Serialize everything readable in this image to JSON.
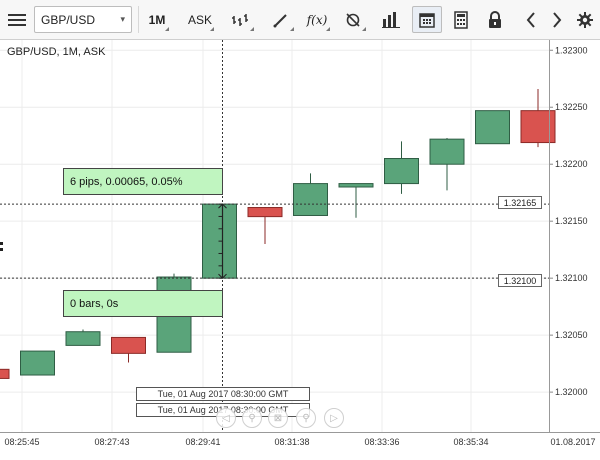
{
  "toolbar": {
    "symbol": "GBP/USD",
    "period": "1M",
    "side": "ASK",
    "icons": [
      "menu-icon",
      "bar-type-icon",
      "draw-line-icon",
      "function-icon",
      "crosshair-icon",
      "volume-bars-icon",
      "calendar-icon",
      "calculator-icon",
      "lock-icon",
      "arrow-left-icon",
      "arrow-right-icon",
      "gear-icon"
    ]
  },
  "chart": {
    "title": "GBP/USD, 1M, ASK",
    "measure_label": "6 pips, 0.00065, 0.05%",
    "bars_label": "0 bars, 0s",
    "time_tooltip_1": "Tue, 01 Aug 2017 08:30:00 GMT",
    "time_tooltip_2": "Tue, 01 Aug 2017 08:30:00 GMT",
    "price_tag_high": "1.32165",
    "price_tag_low": "1.32100",
    "colors": {
      "up": "#5aa47a",
      "down": "#d9534f",
      "label_bg": "#c0f5c0"
    }
  },
  "chart_data": {
    "type": "candlestick",
    "y_ticks": [
      "1.32300",
      "1.32250",
      "1.32200",
      "1.32150",
      "1.32100",
      "1.32050",
      "1.32000"
    ],
    "x_ticks": [
      "08:25:45",
      "08:27:43",
      "08:29:41",
      "08:31:38",
      "08:33:36",
      "08:35:34",
      "01.08.2017"
    ],
    "ylim": [
      1.31965,
      1.32309
    ],
    "candles": [
      {
        "open": 1.3202,
        "high": 1.3202,
        "low": 1.32012,
        "close": 1.32012
      },
      {
        "open": 1.32015,
        "high": 1.32036,
        "low": 1.32015,
        "close": 1.32036
      },
      {
        "open": 1.32041,
        "high": 1.32055,
        "low": 1.32041,
        "close": 1.32053
      },
      {
        "open": 1.32048,
        "high": 1.32048,
        "low": 1.32026,
        "close": 1.32034
      },
      {
        "open": 1.32035,
        "high": 1.32104,
        "low": 1.32035,
        "close": 1.32101
      },
      {
        "open": 1.321,
        "high": 1.32165,
        "low": 1.321,
        "close": 1.32165
      },
      {
        "open": 1.32162,
        "high": 1.32162,
        "low": 1.3213,
        "close": 1.32154
      },
      {
        "open": 1.32155,
        "high": 1.32192,
        "low": 1.32155,
        "close": 1.32183
      },
      {
        "open": 1.3218,
        "high": 1.32183,
        "low": 1.32153,
        "close": 1.32183
      },
      {
        "open": 1.32183,
        "high": 1.3222,
        "low": 1.32174,
        "close": 1.32205
      },
      {
        "open": 1.322,
        "high": 1.32223,
        "low": 1.32177,
        "close": 1.32222
      },
      {
        "open": 1.32218,
        "high": 1.32247,
        "low": 1.32218,
        "close": 1.32247
      },
      {
        "open": 1.32247,
        "high": 1.32266,
        "low": 1.32215,
        "close": 1.32219
      }
    ]
  }
}
